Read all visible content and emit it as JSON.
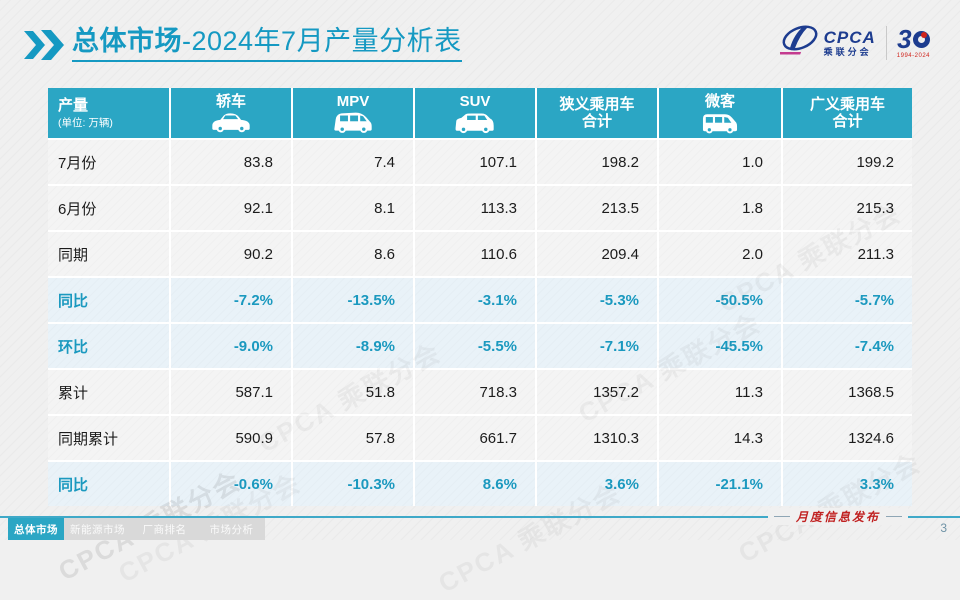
{
  "title": {
    "bold": "总体市场",
    "rest": "-2024年7月产量分析表"
  },
  "logo": {
    "cpca": "CPCA",
    "cpca_sub": "乘联分会",
    "anniversary_number": "3",
    "anniversary_years": "1994-2024"
  },
  "table": {
    "header": {
      "col0_title": "产量",
      "col0_sub": "(单位: 万辆)",
      "columns": [
        {
          "label": "轿车",
          "icon": "sedan-icon"
        },
        {
          "label": "MPV",
          "icon": "mpv-icon"
        },
        {
          "label": "SUV",
          "icon": "suv-icon"
        },
        {
          "label": "狭义乘用车",
          "label2": "合计"
        },
        {
          "label": "微客",
          "icon": "microvan-icon"
        },
        {
          "label": "广义乘用车",
          "label2": "合计"
        }
      ]
    },
    "rows": [
      {
        "label": "7月份",
        "type": "data",
        "values": [
          "83.8",
          "7.4",
          "107.1",
          "198.2",
          "1.0",
          "199.2"
        ]
      },
      {
        "label": "6月份",
        "type": "data",
        "values": [
          "92.1",
          "8.1",
          "113.3",
          "213.5",
          "1.8",
          "215.3"
        ]
      },
      {
        "label": "同期",
        "type": "data",
        "values": [
          "90.2",
          "8.6",
          "110.6",
          "209.4",
          "2.0",
          "211.3"
        ]
      },
      {
        "label": "同比",
        "type": "pct",
        "values": [
          "-7.2%",
          "-13.5%",
          "-3.1%",
          "-5.3%",
          "-50.5%",
          "-5.7%"
        ]
      },
      {
        "label": "环比",
        "type": "pct",
        "values": [
          "-9.0%",
          "-8.9%",
          "-5.5%",
          "-7.1%",
          "-45.5%",
          "-7.4%"
        ]
      },
      {
        "label": "累计",
        "type": "data",
        "values": [
          "587.1",
          "51.8",
          "718.3",
          "1357.2",
          "11.3",
          "1368.5"
        ]
      },
      {
        "label": "同期累计",
        "type": "data",
        "values": [
          "590.9",
          "57.8",
          "661.7",
          "1310.3",
          "14.3",
          "1324.6"
        ]
      },
      {
        "label": "同比",
        "type": "pct",
        "values": [
          "-0.6%",
          "-10.3%",
          "8.6%",
          "3.6%",
          "-21.1%",
          "3.3%"
        ]
      }
    ]
  },
  "footer": {
    "tabs": [
      {
        "id": "overall-market",
        "label": "总体市场",
        "active": true
      },
      {
        "id": "nev-market",
        "label": "新能源市场",
        "active": false
      },
      {
        "id": "oem-ranking",
        "label": "厂商排名",
        "active": false
      },
      {
        "id": "market-analysis",
        "label": "市场分析",
        "active": false
      }
    ],
    "publication": "月度信息发布",
    "page": "3"
  },
  "watermark": "CPCA 乘联分会",
  "colors": {
    "accent_teal": "#2ba6c4",
    "title_teal": "#1599c2",
    "pct_text": "#1b99bf",
    "pct_row_bg": "#e9f2f8",
    "data_row_bg": "#f4f4f4",
    "brand_blue": "#1d3c8f",
    "brand_red": "#d0241c",
    "footer_red": "#c02020"
  }
}
